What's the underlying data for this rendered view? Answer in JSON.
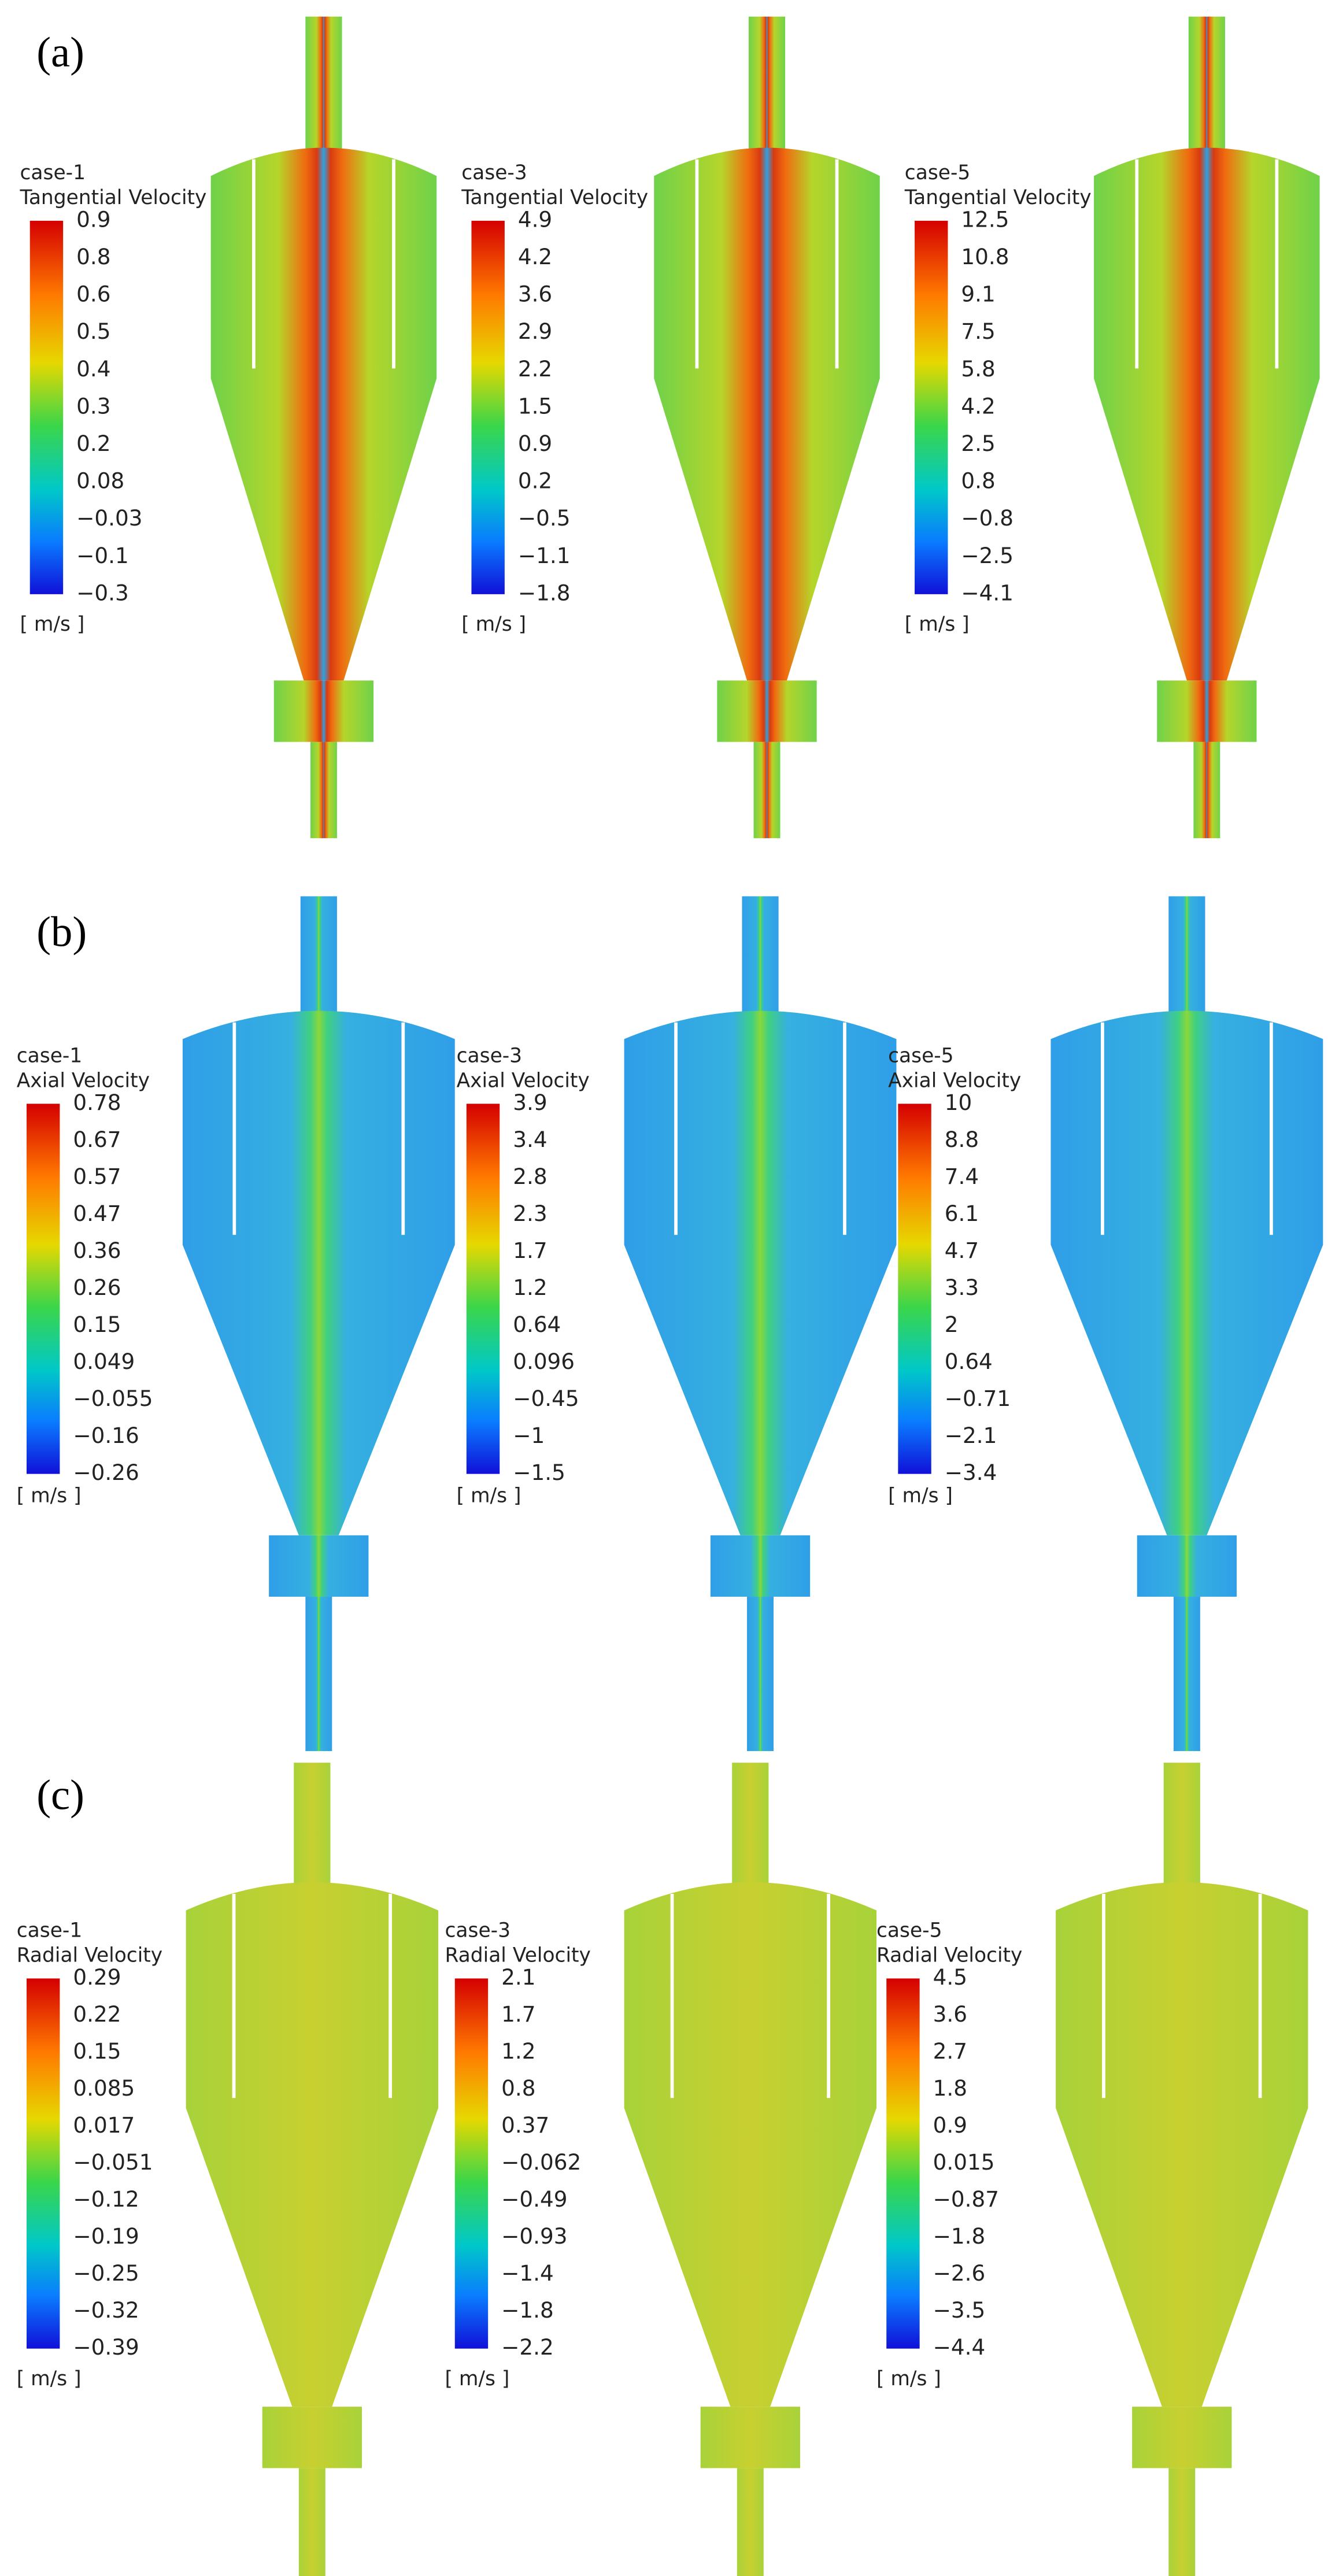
{
  "panels": [
    {
      "label": "(a)",
      "plots": [
        {
          "case": "case-1",
          "quantity": "Tangential Velocity",
          "ticks": [
            "0.9",
            "0.8",
            "0.6",
            "0.5",
            "0.4",
            "0.3",
            "0.2",
            "0.08",
            "−0.03",
            "−0.1",
            "−0.3"
          ],
          "unit": "[ m/s ]"
        },
        {
          "case": "case-3",
          "quantity": "Tangential Velocity",
          "ticks": [
            "4.9",
            "4.2",
            "3.6",
            "2.9",
            "2.2",
            "1.5",
            "0.9",
            "0.2",
            "−0.5",
            "−1.1",
            "−1.8"
          ],
          "unit": "[ m/s ]"
        },
        {
          "case": "case-5",
          "quantity": "Tangential Velocity",
          "ticks": [
            "12.5",
            "10.8",
            "9.1",
            "7.5",
            "5.8",
            "4.2",
            "2.5",
            "0.8",
            "−0.8",
            "−2.5",
            "−4.1"
          ],
          "unit": "[ m/s ]"
        }
      ]
    },
    {
      "label": "(b)",
      "plots": [
        {
          "case": "case-1",
          "quantity": "Axial Velocity",
          "ticks": [
            "0.78",
            "0.67",
            "0.57",
            "0.47",
            "0.36",
            "0.26",
            "0.15",
            "0.049",
            "−0.055",
            "−0.16",
            "−0.26"
          ],
          "unit": "[ m/s ]"
        },
        {
          "case": "case-3",
          "quantity": "Axial Velocity",
          "ticks": [
            "3.9",
            "3.4",
            "2.8",
            "2.3",
            "1.7",
            "1.2",
            "0.64",
            "0.096",
            "−0.45",
            "−1",
            "−1.5"
          ],
          "unit": "[ m/s ]"
        },
        {
          "case": "case-5",
          "quantity": "Axial Velocity",
          "ticks": [
            "10",
            "8.8",
            "7.4",
            "6.1",
            "4.7",
            "3.3",
            "2",
            "0.64",
            "−0.71",
            "−2.1",
            "−3.4"
          ],
          "unit": "[ m/s ]"
        }
      ]
    },
    {
      "label": "(c)",
      "plots": [
        {
          "case": "case-1",
          "quantity": "Radial Velocity",
          "ticks": [
            "0.29",
            "0.22",
            "0.15",
            "0.085",
            "0.017",
            "−0.051",
            "−0.12",
            "−0.19",
            "−0.25",
            "−0.32",
            "−0.39"
          ],
          "unit": "[ m/s ]"
        },
        {
          "case": "case-3",
          "quantity": "Radial Velocity",
          "ticks": [
            "2.1",
            "1.7",
            "1.2",
            "0.8",
            "0.37",
            "−0.062",
            "−0.49",
            "−0.93",
            "−1.4",
            "−1.8",
            "−2.2"
          ],
          "unit": "[ m/s ]"
        },
        {
          "case": "case-5",
          "quantity": "Radial Velocity",
          "ticks": [
            "4.5",
            "3.6",
            "2.7",
            "1.8",
            "0.9",
            "0.015",
            "−0.87",
            "−1.8",
            "−2.6",
            "−3.5",
            "−4.4"
          ],
          "unit": "[ m/s ]"
        }
      ]
    }
  ]
}
